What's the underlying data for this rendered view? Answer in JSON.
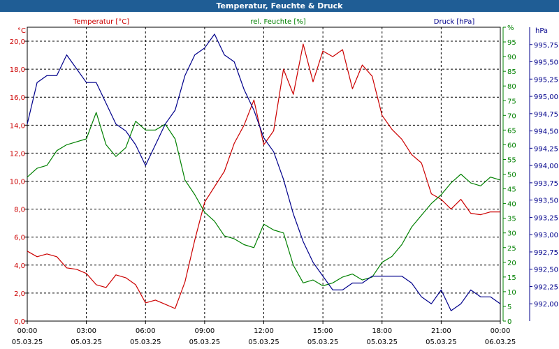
{
  "window": {
    "title": "Temperatur, Feuchte & Druck"
  },
  "colors": {
    "temperature": "#cc0000",
    "humidity": "#008000",
    "pressure": "#00008b",
    "titlebar": "#1f5d95",
    "grid": "#000000"
  },
  "chart_data": {
    "type": "line",
    "title": "Temperatur, Feuchte & Druck",
    "grid": true,
    "x_ticks": [
      {
        "time": "00:00",
        "date": "05.03.25"
      },
      {
        "time": "03:00",
        "date": "05.03.25"
      },
      {
        "time": "06:00",
        "date": "05.03.25"
      },
      {
        "time": "09:00",
        "date": "05.03.25"
      },
      {
        "time": "12:00",
        "date": "05.03.25"
      },
      {
        "time": "15:00",
        "date": "05.03.25"
      },
      {
        "time": "18:00",
        "date": "05.03.25"
      },
      {
        "time": "21:00",
        "date": "05.03.25"
      },
      {
        "time": "00:00",
        "date": "06.03.25"
      }
    ],
    "xlim_hours": [
      0,
      24
    ],
    "axes": {
      "temperature": {
        "label": "Temperatur [°C]",
        "unit": "°C",
        "ylim": [
          0,
          21
        ],
        "ticks": [
          "0,0",
          "2,0",
          "4,0",
          "6,0",
          "8,0",
          "10,0",
          "12,0",
          "14,0",
          "16,0",
          "18,0",
          "20,0"
        ],
        "tick_values": [
          0,
          2,
          4,
          6,
          8,
          10,
          12,
          14,
          16,
          18,
          20
        ]
      },
      "humidity": {
        "label": "rel. Feuchte [%]",
        "unit": "%",
        "ylim": [
          0,
          100
        ],
        "ticks": [
          "0",
          "5",
          "10",
          "15",
          "20",
          "25",
          "30",
          "35",
          "40",
          "45",
          "50",
          "55",
          "60",
          "65",
          "70",
          "75",
          "80",
          "85",
          "90",
          "95",
          "%"
        ],
        "tick_values": [
          0,
          5,
          10,
          15,
          20,
          25,
          30,
          35,
          40,
          45,
          50,
          55,
          60,
          65,
          70,
          75,
          80,
          85,
          90,
          95,
          100
        ]
      },
      "pressure": {
        "label": "Druck [hPa]",
        "unit": "hPa",
        "ylim": [
          991.75,
          996.0
        ],
        "ticks": [
          "992,00",
          "992,25",
          "992,50",
          "992,75",
          "993,00",
          "993,25",
          "993,50",
          "993,75",
          "994,00",
          "994,25",
          "994,50",
          "994,75",
          "995,00",
          "995,25",
          "995,50",
          "995,75"
        ],
        "tick_values": [
          992.0,
          992.25,
          992.5,
          992.75,
          993.0,
          993.25,
          993.5,
          993.75,
          994.0,
          994.25,
          994.5,
          994.75,
          995.0,
          995.25,
          995.5,
          995.75
        ]
      }
    },
    "series": [
      {
        "name": "Temperatur [°C]",
        "axis": "temperature",
        "x": [
          0,
          0.5,
          1,
          1.5,
          2,
          2.5,
          3,
          3.5,
          4,
          4.5,
          5,
          5.5,
          6,
          6.5,
          7,
          7.5,
          8,
          8.5,
          9,
          9.5,
          10,
          10.5,
          11,
          11.5,
          12,
          12.5,
          13,
          13.5,
          14,
          14.5,
          15,
          15.5,
          16,
          16.5,
          17,
          17.5,
          18,
          18.5,
          19,
          19.5,
          20,
          20.5,
          21,
          21.5,
          22,
          22.5,
          23,
          23.5,
          24
        ],
        "y": [
          5.0,
          4.6,
          4.8,
          4.6,
          3.8,
          3.7,
          3.4,
          2.6,
          2.4,
          3.3,
          3.1,
          2.6,
          1.3,
          1.5,
          1.2,
          0.9,
          2.8,
          5.8,
          8.5,
          9.6,
          10.7,
          12.7,
          14.0,
          15.8,
          12.6,
          13.6,
          18.0,
          16.2,
          19.8,
          17.1,
          19.3,
          18.9,
          19.4,
          16.6,
          18.3,
          17.5,
          14.7,
          13.7,
          13.0,
          11.9,
          11.3,
          9.1,
          8.7,
          8.0,
          8.7,
          7.7,
          7.6,
          7.8,
          7.8
        ]
      },
      {
        "name": "rel. Feuchte [%]",
        "axis": "humidity",
        "x": [
          0,
          0.5,
          1,
          1.5,
          2,
          2.5,
          3,
          3.5,
          4,
          4.5,
          5,
          5.5,
          6,
          6.5,
          7,
          7.5,
          8,
          8.5,
          9,
          9.5,
          10,
          10.5,
          11,
          11.5,
          12,
          12.5,
          13,
          13.5,
          14,
          14.5,
          15,
          15.5,
          16,
          16.5,
          17,
          17.5,
          18,
          18.5,
          19,
          19.5,
          20,
          20.5,
          21,
          21.5,
          22,
          22.5,
          23,
          23.5,
          24
        ],
        "y": [
          49,
          52,
          53,
          58,
          60,
          61,
          62,
          71,
          60,
          56,
          59,
          68,
          65,
          65,
          67,
          62,
          48,
          43,
          37,
          34,
          29,
          28,
          26,
          25,
          33,
          31,
          30,
          19,
          13,
          14,
          12,
          13,
          15,
          16,
          14,
          15,
          20,
          22,
          26,
          32,
          36,
          40,
          43,
          47,
          50,
          47,
          46,
          49,
          48
        ]
      },
      {
        "name": "Druck [hPa]",
        "axis": "pressure",
        "x": [
          0,
          0.5,
          1,
          1.5,
          2,
          2.5,
          3,
          3.5,
          4,
          4.5,
          5,
          5.5,
          6,
          6.5,
          7,
          7.5,
          8,
          8.5,
          9,
          9.5,
          10,
          10.5,
          11,
          11.5,
          12,
          12.5,
          13,
          13.5,
          14,
          14.5,
          15,
          15.5,
          16,
          16.5,
          17,
          17.5,
          18,
          18.5,
          19,
          19.5,
          20,
          20.5,
          21,
          21.5,
          22,
          22.5,
          23,
          23.5,
          24
        ],
        "y": [
          994.6,
          995.2,
          995.3,
          995.3,
          995.6,
          995.4,
          995.2,
          995.2,
          994.9,
          994.6,
          994.5,
          994.3,
          994.0,
          994.3,
          994.6,
          994.8,
          995.3,
          995.6,
          995.7,
          995.9,
          995.6,
          995.5,
          995.1,
          994.8,
          994.4,
          994.2,
          993.8,
          993.3,
          992.9,
          992.6,
          992.4,
          992.2,
          992.2,
          992.3,
          992.3,
          992.4,
          992.4,
          992.4,
          992.4,
          992.3,
          992.1,
          992.0,
          992.2,
          991.9,
          992.0,
          992.2,
          992.1,
          992.1,
          992.0
        ]
      }
    ]
  }
}
